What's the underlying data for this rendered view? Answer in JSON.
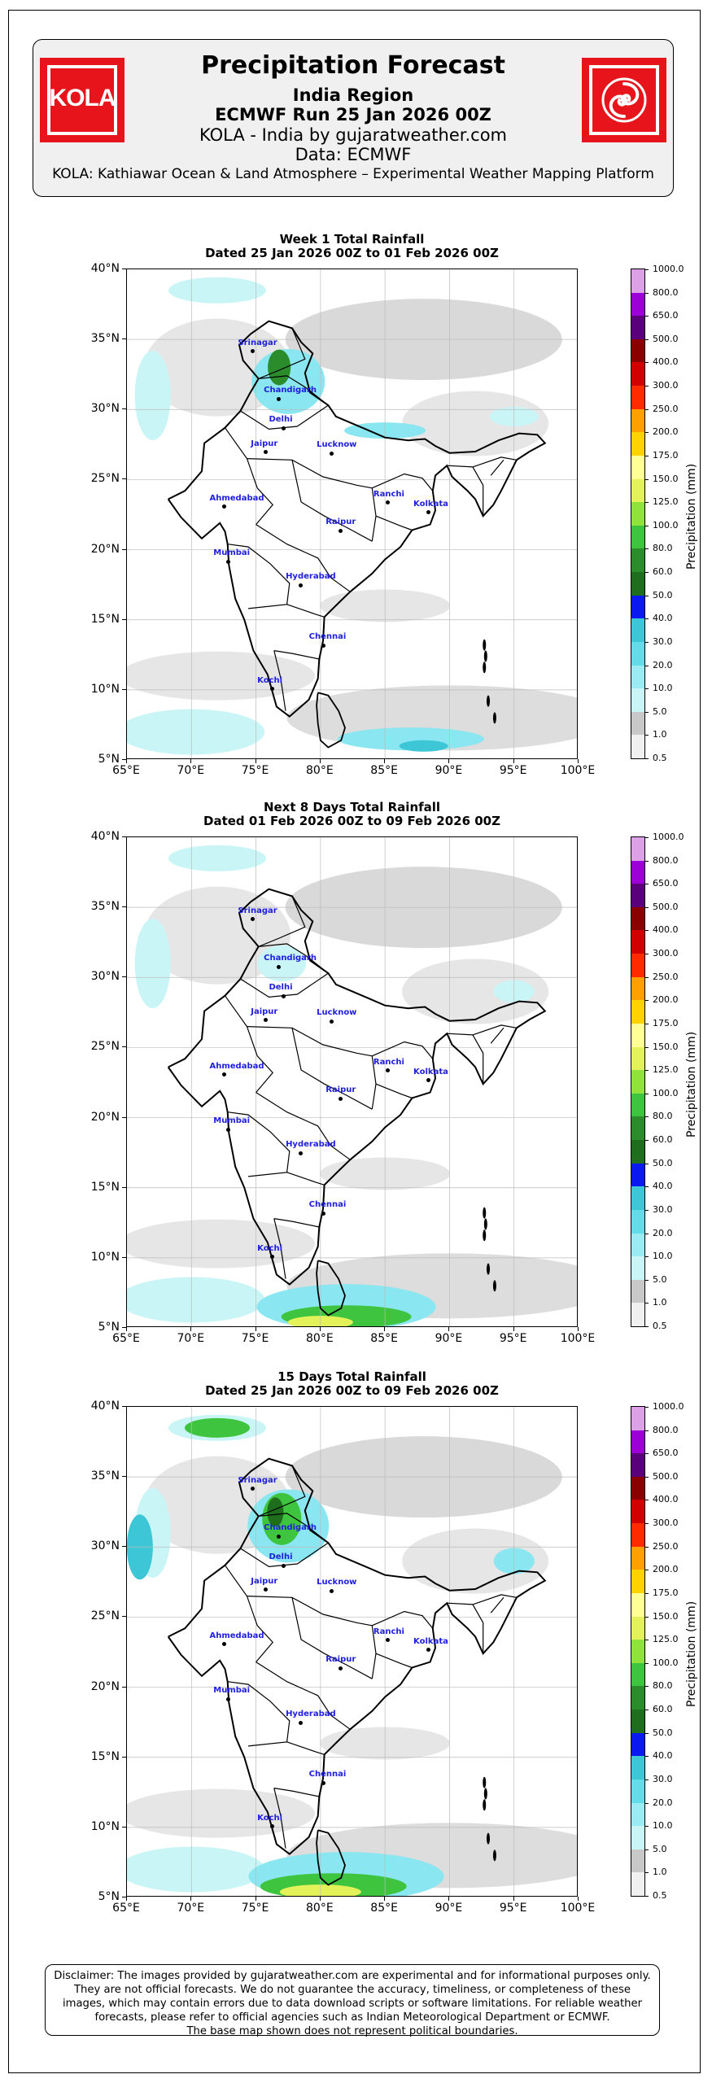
{
  "header": {
    "title": "Precipitation Forecast",
    "region": "India Region",
    "run": "ECMWF Run 25 Jan 2026 00Z",
    "brand": "KOLA - India by gujaratweather.com",
    "data_source": "Data: ECMWF",
    "platform": "KOLA: Kathiawar Ocean & Land Atmosphere – Experimental Weather Mapping Platform",
    "logo_left_text": "KOLA",
    "logo_right_icon": "swirl-icon",
    "logo_color": "#e8141b"
  },
  "panels": [
    {
      "title_line1": "Week 1 Total Rainfall",
      "title_line2": "Dated 25 Jan 2026 00Z to 01 Feb 2026 00Z"
    },
    {
      "title_line1": "Next 8 Days Total Rainfall",
      "title_line2": "Dated 01 Feb 2026 00Z to 09 Feb 2026 00Z"
    },
    {
      "title_line1": "15 Days Total Rainfall",
      "title_line2": "Dated 25 Jan 2026 00Z to 09 Feb 2026 00Z"
    }
  ],
  "axes": {
    "lat_labels": [
      "40°N",
      "35°N",
      "30°N",
      "25°N",
      "20°N",
      "15°N",
      "10°N",
      "5°N"
    ],
    "lon_labels": [
      "65°E",
      "70°E",
      "75°E",
      "80°E",
      "85°E",
      "90°E",
      "95°E",
      "100°E"
    ],
    "lat_range": [
      5,
      40
    ],
    "lon_range": [
      65,
      100
    ]
  },
  "colorbar": {
    "unit_label": "Precipitation (mm)",
    "levels": [
      "0.5",
      "1.0",
      "5.0",
      "10.0",
      "20.0",
      "30.0",
      "40.0",
      "50.0",
      "60.0",
      "80.0",
      "100.0",
      "125.0",
      "150.0",
      "175.0",
      "200.0",
      "250.0",
      "300.0",
      "400.0",
      "500.0",
      "650.0",
      "800.0",
      "1000.0"
    ],
    "colors": [
      "#f0f0f0",
      "#c8c8c8",
      "#c9f5f7",
      "#9aebf3",
      "#64dbe9",
      "#3cc6d6",
      "#0a19f0",
      "#1e6e1e",
      "#2a8c2a",
      "#3ec43e",
      "#8fe33a",
      "#e4f25a",
      "#ffff96",
      "#ffd200",
      "#ffa000",
      "#ff2a00",
      "#d20000",
      "#8b0000",
      "#5a007a",
      "#9b00d6",
      "#dca0e6"
    ]
  },
  "cities": [
    {
      "name": "Srinagar",
      "lon": 74.8,
      "lat": 34.1
    },
    {
      "name": "Chandigarh",
      "lon": 76.8,
      "lat": 30.7
    },
    {
      "name": "Delhi",
      "lon": 77.2,
      "lat": 28.6
    },
    {
      "name": "Jaipur",
      "lon": 75.8,
      "lat": 26.9
    },
    {
      "name": "Lucknow",
      "lon": 80.9,
      "lat": 26.8
    },
    {
      "name": "Ranchi",
      "lon": 85.3,
      "lat": 23.3
    },
    {
      "name": "Kolkata",
      "lon": 88.4,
      "lat": 22.6
    },
    {
      "name": "Ahmedabad",
      "lon": 72.6,
      "lat": 23.0
    },
    {
      "name": "Raipur",
      "lon": 81.6,
      "lat": 21.3
    },
    {
      "name": "Mumbai",
      "lon": 72.9,
      "lat": 19.1
    },
    {
      "name": "Hyderabad",
      "lon": 78.5,
      "lat": 17.4
    },
    {
      "name": "Chennai",
      "lon": 80.3,
      "lat": 13.1
    },
    {
      "name": "Kochi",
      "lon": 76.3,
      "lat": 10.0
    }
  ],
  "disclaimer": {
    "line1": "Disclaimer: The images provided by gujaratweather.com are experimental and for informational purposes only.",
    "line2": "They are not official forecasts. We do not guarantee the accuracy, timeliness, or completeness of these",
    "line3": "images, which may contain errors due to data download scripts or software limitations. For reliable weather",
    "line4": "forecasts, please refer to official agencies such as Indian Meteorological Department or ECMWF.",
    "line5": "The base map shown does not represent political boundaries."
  }
}
